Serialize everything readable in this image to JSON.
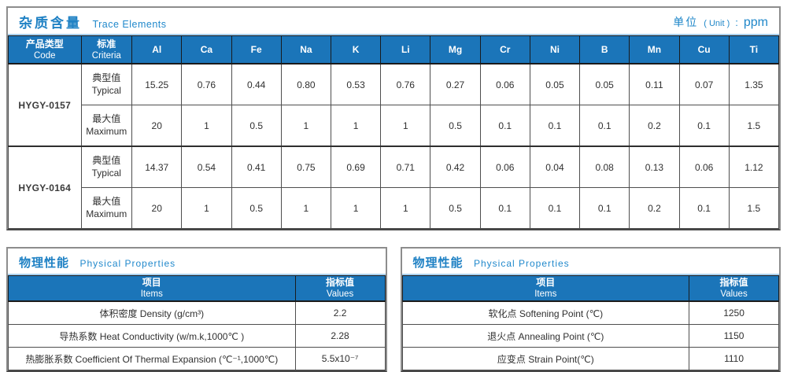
{
  "trace_section": {
    "title_zh": "杂质含量",
    "title_en": "Trace Elements",
    "unit": {
      "zh": "单位",
      "en": "( Unit )",
      "colon": ":",
      "value": "ppm"
    },
    "columns": {
      "product": {
        "zh": "产品类型",
        "en": "Code"
      },
      "criteria": {
        "zh": "标准",
        "en": "Criteria"
      },
      "elements": [
        "Al",
        "Ca",
        "Fe",
        "Na",
        "K",
        "Li",
        "Mg",
        "Cr",
        "Ni",
        "B",
        "Mn",
        "Cu",
        "Ti"
      ]
    },
    "products": [
      {
        "code": "HYGY-0157",
        "rows": [
          {
            "label_zh": "典型值",
            "label_en": "Typical",
            "values": [
              "15.25",
              "0.76",
              "0.44",
              "0.80",
              "0.53",
              "0.76",
              "0.27",
              "0.06",
              "0.05",
              "0.05",
              "0.11",
              "0.07",
              "1.35"
            ]
          },
          {
            "label_zh": "最大值",
            "label_en": "Maximum",
            "values": [
              "20",
              "1",
              "0.5",
              "1",
              "1",
              "1",
              "0.5",
              "0.1",
              "0.1",
              "0.1",
              "0.2",
              "0.1",
              "1.5"
            ]
          }
        ]
      },
      {
        "code": "HYGY-0164",
        "rows": [
          {
            "label_zh": "典型值",
            "label_en": "Typical",
            "values": [
              "14.37",
              "0.54",
              "0.41",
              "0.75",
              "0.69",
              "0.71",
              "0.42",
              "0.06",
              "0.04",
              "0.08",
              "0.13",
              "0.06",
              "1.12"
            ]
          },
          {
            "label_zh": "最大值",
            "label_en": "Maximum",
            "values": [
              "20",
              "1",
              "0.5",
              "1",
              "1",
              "1",
              "0.5",
              "0.1",
              "0.1",
              "0.1",
              "0.2",
              "0.1",
              "1.5"
            ]
          }
        ]
      }
    ]
  },
  "physical_sections": [
    {
      "title_zh": "物理性能",
      "title_en": "Physical Properties",
      "columns": {
        "items_zh": "项目",
        "items_en": "Items",
        "values_zh": "指标值",
        "values_en": "Values"
      },
      "rows": [
        {
          "item": "体积密度 Density (g/cm³)",
          "value": "2.2"
        },
        {
          "item": "导热系数 Heat Conductivity (w/m.k,1000℃ )",
          "value": "2.28"
        },
        {
          "item": "热膨胀系数 Coefficient Of Thermal Expansion (℃⁻¹,1000℃)",
          "value": "5.5x10⁻⁷"
        }
      ]
    },
    {
      "title_zh": "物理性能",
      "title_en": "Physical Properties",
      "columns": {
        "items_zh": "项目",
        "items_en": "Items",
        "values_zh": "指标值",
        "values_en": "Values"
      },
      "rows": [
        {
          "item": "软化点 Softening Point (℃)",
          "value": "1250"
        },
        {
          "item": "退火点 Annealing Point (℃)",
          "value": "1150"
        },
        {
          "item": "应变点 Strain Point(℃)",
          "value": "1110"
        }
      ]
    }
  ],
  "colors": {
    "header_blue": "#1b75b9",
    "title_blue": "#1f81c4"
  }
}
